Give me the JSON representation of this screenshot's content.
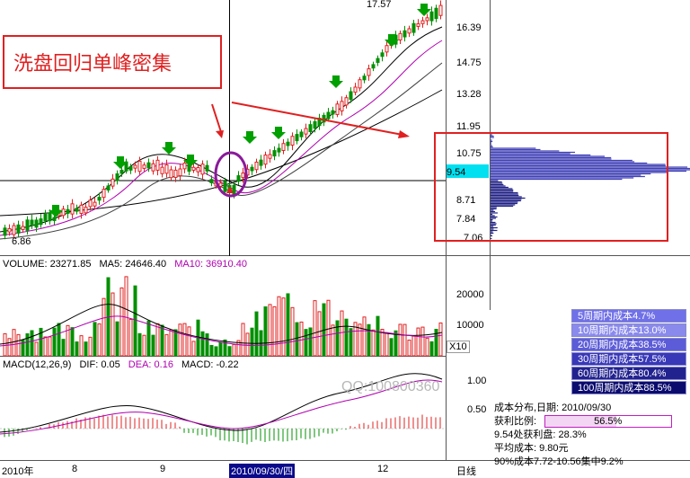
{
  "callout": {
    "text": "洗盘回归单峰密集"
  },
  "price_axis": {
    "labels": [
      "16.39",
      "14.75",
      "13.28",
      "11.95",
      "10.75",
      "8.71",
      "7.84",
      "7.06"
    ],
    "current": "9.54",
    "high_label": "17.57",
    "low_label": "6.86"
  },
  "volume": {
    "title": "VOLUME: 23271.85",
    "ma5": "MA5: 24646.40",
    "ma10": "MA10: 36910.40",
    "labels": [
      "20000",
      "10000"
    ],
    "scale_button": "X10"
  },
  "macd": {
    "title": "MACD(12,26,9)",
    "dif": "DIF: 0.05",
    "dea": "DEA: 0.16",
    "macd": "MACD: -0.22",
    "labels": [
      "1.00",
      "0.50"
    ]
  },
  "time_axis": {
    "labels": [
      "2010年",
      "8",
      "9",
      "2010/09/30/四",
      "12",
      "日线"
    ]
  },
  "watermark": {
    "qq": "QQ:100800360"
  },
  "cost_legend": [
    {
      "label": "5周期内成本4.7%",
      "color": "#7070e8"
    },
    {
      "label": "10周期内成本13.0%",
      "color": "#8a8aec"
    },
    {
      "label": "20周期内成本38.5%",
      "color": "#5c5cd8"
    },
    {
      "label": "30周期内成本57.5%",
      "color": "#3838b8"
    },
    {
      "label": "60周期内成本80.4%",
      "color": "#22228f"
    },
    {
      "label": "100周期内成本88.5%",
      "color": "#0b0b6e"
    }
  ],
  "distribution": {
    "date_line": "成本分布,日期: 2010/09/30",
    "profit_label": "获利比例:",
    "profit_value": "56.5%",
    "profit_fraction": 0.565,
    "profit_at": "9.54处获利盘: 28.3%",
    "avg_cost": "平均成本: 9.80元",
    "concentration": "90%成本7.72-10.56集中9.2%"
  },
  "colors": {
    "up": "#e02020",
    "down": "#009000",
    "accent": "#e02020",
    "chip": "#2e2eb0"
  }
}
